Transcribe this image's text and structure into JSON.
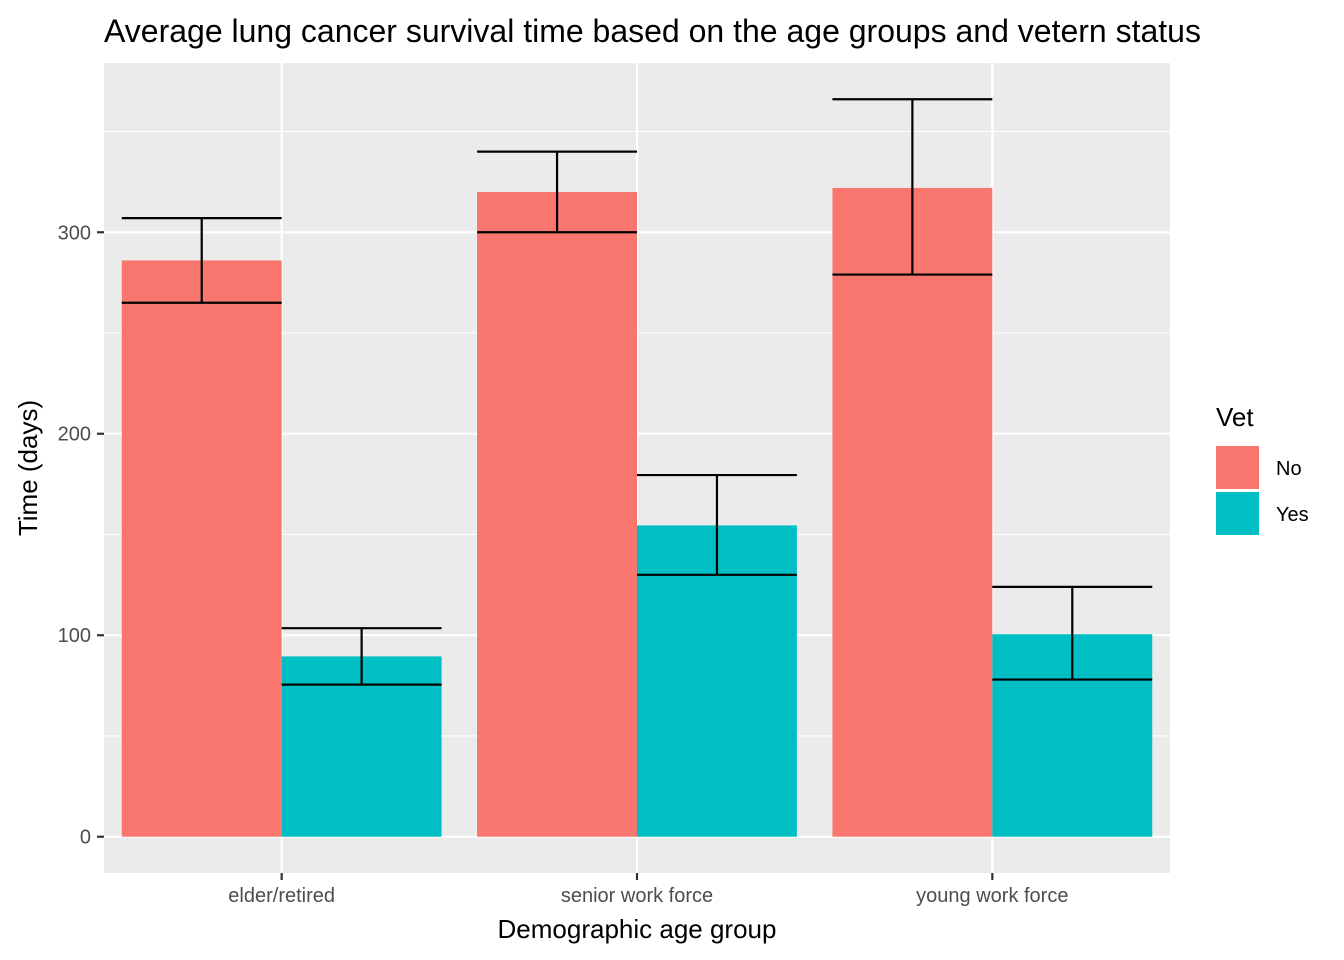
{
  "chart_data": {
    "type": "bar",
    "title": "Average lung cancer survival time based on the age groups and vetern status",
    "xlabel": "Demographic age group",
    "ylabel": "Time (days)",
    "categories": [
      "elder/retired",
      "senior work force",
      "young work force"
    ],
    "series": [
      {
        "name": "No",
        "color": "#F8766D",
        "values": [
          286,
          320,
          322
        ],
        "error_low": [
          265,
          300,
          279
        ],
        "error_high": [
          307,
          340,
          366
        ]
      },
      {
        "name": "Yes",
        "color": "#00BFC4",
        "values": [
          89.5,
          154.5,
          100.5
        ],
        "error_low": [
          75.5,
          130,
          78
        ],
        "error_high": [
          103.5,
          179.5,
          124
        ]
      }
    ],
    "ylim": [
      -18,
      384
    ],
    "y_ticks": [
      0,
      100,
      200,
      300
    ],
    "legend_title": "Vet",
    "legend_position": "right",
    "grid": true,
    "panel_background": "#EBEBEB"
  }
}
